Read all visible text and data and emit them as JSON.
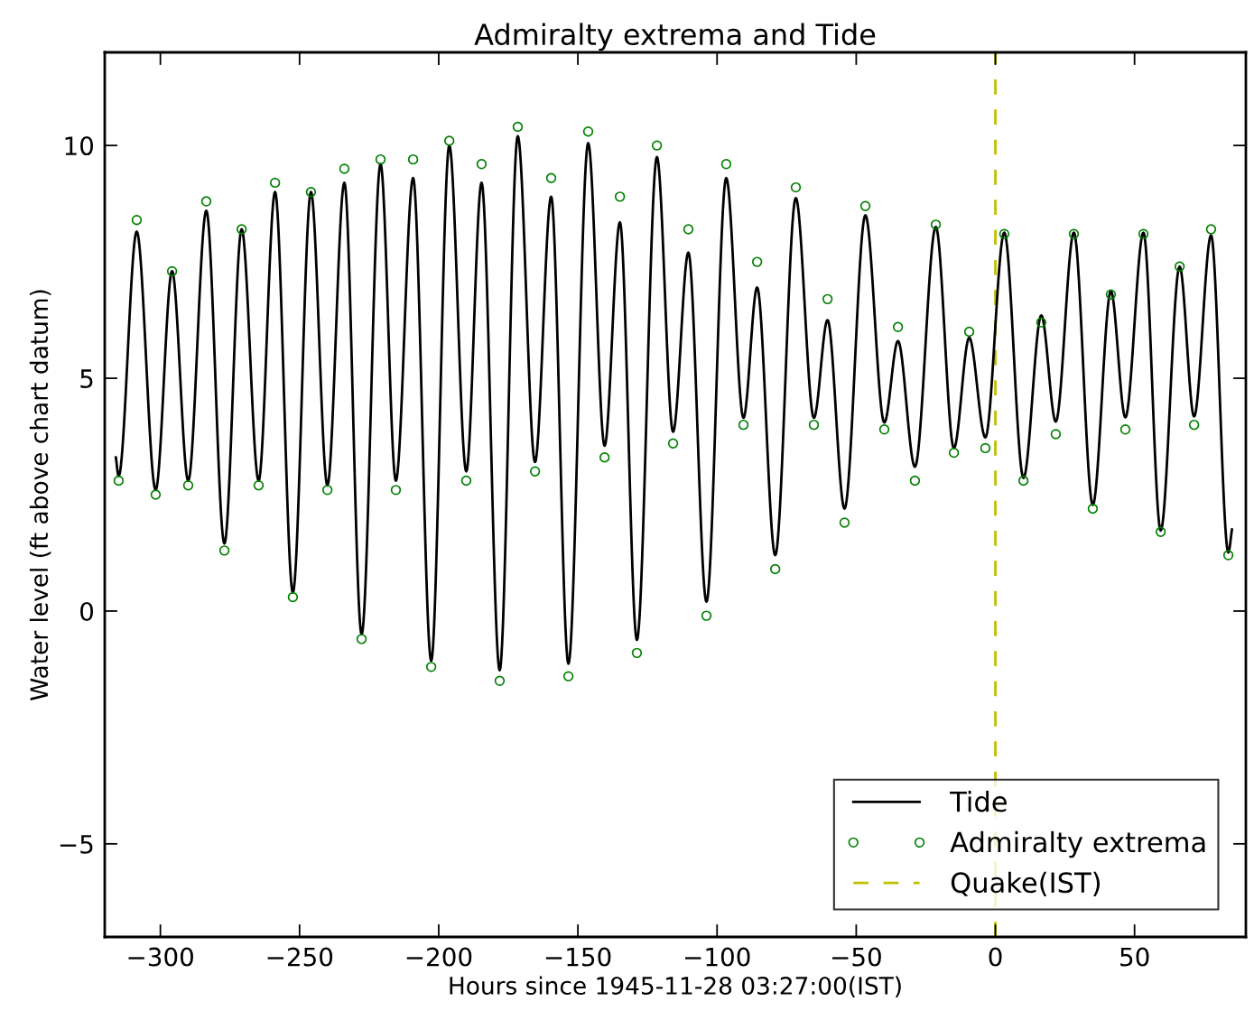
{
  "chart_data": {
    "type": "line",
    "title": "Admiralty extrema and Tide",
    "xlabel": "Hours since 1945-11-28 03:27:00(IST)",
    "ylabel": "Water level (ft above chart datum)",
    "series": [
      {
        "name": "Tide",
        "color": "#000000",
        "marker": "none",
        "line_style": "solid",
        "x": [
          -316,
          -315,
          -308.5,
          -301.7,
          -295.8,
          -290,
          -283.5,
          -277,
          -270.8,
          -264.7,
          -258.8,
          -252.4,
          -245.9,
          -240,
          -233.9,
          -227.7,
          -220.9,
          -215.4,
          -209.2,
          -202.7,
          -196.2,
          -190.1,
          -184.6,
          -178.1,
          -171.6,
          -165.4,
          -159.6,
          -153.4,
          -146.3,
          -140.4,
          -134.9,
          -128.8,
          -121.6,
          -115.8,
          -110.3,
          -103.8,
          -96.7,
          -90.5,
          -85.6,
          -79.1,
          -71.7,
          -65.2,
          -60.3,
          -54.2,
          -46.7,
          -39.9,
          -35.0,
          -28.9,
          -21.4,
          -14.9,
          -9.4,
          -3.6,
          3.2,
          10.1,
          16.5,
          21.7,
          28.2,
          35.0,
          41.5,
          46.7,
          53.2,
          59.4,
          66.2,
          71.4,
          77.5,
          83.7,
          85
        ],
        "values": [
          3.3,
          2.9,
          8.15,
          2.6,
          7.3,
          2.8,
          8.6,
          1.45,
          8.2,
          2.8,
          9.0,
          0.4,
          9.0,
          2.7,
          9.2,
          -0.5,
          9.6,
          2.8,
          9.3,
          -1.07,
          10.0,
          3.0,
          9.2,
          -1.27,
          10.2,
          3.2,
          8.9,
          -1.13,
          10.05,
          3.55,
          8.35,
          -0.62,
          9.75,
          3.85,
          7.7,
          0.2,
          9.3,
          4.15,
          6.95,
          1.2,
          8.87,
          4.15,
          6.25,
          2.2,
          8.5,
          4.05,
          5.8,
          3.1,
          8.25,
          3.5,
          5.87,
          3.73,
          8.13,
          2.86,
          6.35,
          4.07,
          8.13,
          2.28,
          6.87,
          4.16,
          8.13,
          1.73,
          7.4,
          4.18,
          8.07,
          1.26,
          1.75
        ]
      },
      {
        "name": "Admiralty extrema",
        "type": "scatter",
        "color": "#008000",
        "marker": "circle",
        "x": [
          -315,
          -308.5,
          -301.7,
          -295.8,
          -290,
          -283.5,
          -277,
          -270.8,
          -264.7,
          -258.8,
          -252.4,
          -245.9,
          -240,
          -233.9,
          -227.7,
          -220.9,
          -215.4,
          -209.2,
          -202.7,
          -196.2,
          -190.1,
          -184.6,
          -178.1,
          -171.6,
          -165.4,
          -159.6,
          -153.4,
          -146.3,
          -140.4,
          -134.9,
          -128.8,
          -121.6,
          -115.8,
          -110.3,
          -103.8,
          -96.7,
          -90.5,
          -85.6,
          -79.1,
          -71.7,
          -65.2,
          -60.3,
          -54.2,
          -46.7,
          -39.9,
          -35.0,
          -28.9,
          -21.4,
          -14.9,
          -9.4,
          -3.6,
          3.2,
          10.1,
          16.5,
          21.7,
          28.2,
          35.0,
          41.5,
          46.7,
          53.2,
          59.4,
          66.2,
          71.4,
          77.5,
          83.7
        ],
        "values": [
          2.8,
          8.4,
          2.5,
          7.3,
          2.7,
          8.8,
          1.3,
          8.2,
          2.7,
          9.2,
          0.3,
          9.0,
          2.6,
          9.5,
          -0.6,
          9.7,
          2.6,
          9.7,
          -1.2,
          10.1,
          2.8,
          9.6,
          -1.5,
          10.4,
          3.0,
          9.3,
          -1.4,
          10.3,
          3.3,
          8.9,
          -0.9,
          10.0,
          3.6,
          8.2,
          -0.1,
          9.6,
          4.0,
          7.5,
          0.9,
          9.1,
          4.0,
          6.7,
          1.9,
          8.7,
          3.9,
          6.1,
          2.8,
          8.3,
          3.4,
          6.0,
          3.5,
          8.1,
          2.8,
          6.2,
          3.8,
          8.1,
          2.2,
          6.8,
          3.9,
          8.1,
          1.7,
          7.4,
          4.0,
          8.2,
          1.2
        ]
      }
    ],
    "ref_lines": [
      {
        "axis": "x",
        "value": 0,
        "label": "Quake(IST)",
        "color": "#bfbf00",
        "line_style": "dashed"
      }
    ],
    "xlim": [
      -320,
      90
    ],
    "ylim": [
      -7,
      12
    ],
    "xticks": [
      {
        "value": -300,
        "label": "−300"
      },
      {
        "value": -250,
        "label": "−250"
      },
      {
        "value": -200,
        "label": "−200"
      },
      {
        "value": -150,
        "label": "−150"
      },
      {
        "value": -100,
        "label": "−100"
      },
      {
        "value": -50,
        "label": "−50"
      },
      0,
      50
    ],
    "yticks": [
      {
        "value": -5,
        "label": "−5"
      },
      0,
      5,
      10
    ],
    "grid": false,
    "legend": "bottom right"
  }
}
